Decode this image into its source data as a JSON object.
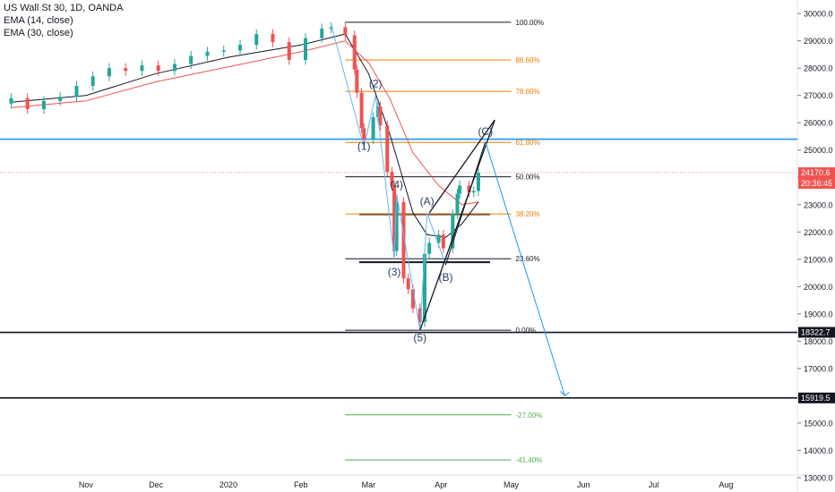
{
  "header": {
    "symbol_line": "US Wall St 30, 1D, OANDA",
    "ema1_label": "EMA (14, close)",
    "ema2_label": "EMA (30, close)"
  },
  "colors": {
    "bull": "#26a69a",
    "bear": "#ef5350",
    "ema14": "#131722",
    "ema30": "#ef5350",
    "fib_black": "#131722",
    "fib_orange": "#f57c00",
    "fib_green": "#4caf50",
    "hline_blue": "#2196f3",
    "arrow_blue": "#2196f3",
    "price_badge": "#ef5350"
  },
  "y_axis_ticks": [
    "30000.0",
    "29000.0",
    "28000.0",
    "27000.0",
    "26000.0",
    "25000.0",
    "24000.0",
    "23000.0",
    "22000.0",
    "21000.0",
    "20000.0",
    "19000.0",
    "18000.0",
    "17000.0",
    "16000.0",
    "15000.0",
    "14000.0",
    "13000.0"
  ],
  "x_axis_labels": [
    "Nov",
    "Dec",
    "2020",
    "Feb",
    "Mar",
    "Apr",
    "May",
    "Jun",
    "Jul",
    "Aug"
  ],
  "fib_levels": [
    {
      "label": "100.00%",
      "price": 29680,
      "color": "fib_black"
    },
    {
      "label": "88.60%",
      "price": 28300,
      "color": "fib_orange"
    },
    {
      "label": "78.60%",
      "price": 27150,
      "color": "fib_orange"
    },
    {
      "label": "61.80%",
      "price": 25280,
      "color": "fib_orange"
    },
    {
      "label": "50.00%",
      "price": 24020,
      "color": "fib_black"
    },
    {
      "label": "38.20%",
      "price": 22660,
      "color": "fib_orange"
    },
    {
      "label": "23.60%",
      "price": 21020,
      "color": "fib_black"
    },
    {
      "label": "0.00%",
      "price": 18400,
      "color": "fib_black"
    },
    {
      "label": "-27.00%",
      "price": 15300,
      "color": "fib_green"
    },
    {
      "label": "-41.40%",
      "price": 13650,
      "color": "fib_green"
    }
  ],
  "wave_labels": [
    {
      "label": "(1)",
      "x_date": "2020-02-28",
      "price": 25000
    },
    {
      "label": "(2)",
      "x_date": "2020-03-04",
      "price": 27300
    },
    {
      "label": "(3)",
      "x_date": "2020-03-12",
      "price": 20400
    },
    {
      "label": "(4)",
      "x_date": "2020-03-13",
      "price": 23600
    },
    {
      "label": "(5)",
      "x_date": "2020-03-23",
      "price": 18000
    },
    {
      "label": "(A)",
      "x_date": "2020-03-26",
      "price": 23000
    },
    {
      "label": "(B)",
      "x_date": "2020-04-03",
      "price": 20200
    },
    {
      "label": "(C)",
      "x_date": "2020-04-20",
      "price": 25550
    }
  ],
  "horizontal_lines": [
    {
      "name": "resistance-blue",
      "price": 25400,
      "color": "hline_blue"
    },
    {
      "name": "support-18322",
      "price": 18322.7,
      "color": "fib_black"
    },
    {
      "name": "target-15919",
      "price": 15919.5,
      "color": "fib_black"
    },
    {
      "name": "range-high",
      "price": 22650,
      "color": "fib_black"
    },
    {
      "name": "range-low",
      "price": 20890,
      "color": "fib_black"
    }
  ],
  "price_badges": [
    {
      "name": "last-price-badge",
      "text": "24170.6",
      "bg": "#ef5350",
      "fg": "#ffffff"
    },
    {
      "name": "countdown-badge",
      "text": "20:36:45",
      "bg": "#ef5350",
      "fg": "#ffffff"
    },
    {
      "name": "level-18322-badge",
      "text": "18322.7",
      "bg": "#131722",
      "fg": "#ffffff"
    },
    {
      "name": "level-15919-badge",
      "text": "15919.5",
      "bg": "#131722",
      "fg": "#ffffff"
    }
  ],
  "last_price": 24170.6,
  "chart_data": {
    "type": "candlestick",
    "y_range": [
      12900,
      30300
    ],
    "x_range": [
      "2019-09-26",
      "2020-08-30"
    ],
    "candles": [
      {
        "date": "2019-09-30",
        "close": 26900
      },
      {
        "date": "2019-10-07",
        "close": 26500
      },
      {
        "date": "2019-10-14",
        "close": 26800
      },
      {
        "date": "2019-10-21",
        "close": 26950
      },
      {
        "date": "2019-10-28",
        "close": 27350
      },
      {
        "date": "2019-11-04",
        "close": 27700
      },
      {
        "date": "2019-11-11",
        "close": 28000
      },
      {
        "date": "2019-11-18",
        "close": 27900
      },
      {
        "date": "2019-11-25",
        "close": 28100
      },
      {
        "date": "2019-12-02",
        "close": 27900
      },
      {
        "date": "2019-12-09",
        "close": 28150
      },
      {
        "date": "2019-12-16",
        "close": 28450
      },
      {
        "date": "2019-12-23",
        "close": 28600
      },
      {
        "date": "2019-12-30",
        "close": 28650
      },
      {
        "date": "2020-01-06",
        "close": 28850
      },
      {
        "date": "2020-01-13",
        "close": 29250
      },
      {
        "date": "2020-01-20",
        "close": 28950
      },
      {
        "date": "2020-01-27",
        "close": 28300
      },
      {
        "date": "2020-02-03",
        "close": 29100
      },
      {
        "date": "2020-02-10",
        "close": 29450
      },
      {
        "date": "2020-02-14",
        "close": 29500
      },
      {
        "date": "2020-02-20",
        "close": 29200
      },
      {
        "date": "2020-02-24",
        "close": 27950
      },
      {
        "date": "2020-02-25",
        "close": 27100
      },
      {
        "date": "2020-02-27",
        "close": 25800
      },
      {
        "date": "2020-02-28",
        "close": 25400
      },
      {
        "date": "2020-03-03",
        "close": 26200
      },
      {
        "date": "2020-03-05",
        "close": 26600
      },
      {
        "date": "2020-03-06",
        "close": 25900
      },
      {
        "date": "2020-03-09",
        "close": 24200
      },
      {
        "date": "2020-03-11",
        "close": 23700
      },
      {
        "date": "2020-03-12",
        "close": 21300
      },
      {
        "date": "2020-03-13",
        "close": 23100
      },
      {
        "date": "2020-03-16",
        "close": 20300
      },
      {
        "date": "2020-03-18",
        "close": 19900
      },
      {
        "date": "2020-03-20",
        "close": 19200
      },
      {
        "date": "2020-03-23",
        "close": 18700
      },
      {
        "date": "2020-03-25",
        "close": 21200
      },
      {
        "date": "2020-03-27",
        "close": 21600
      },
      {
        "date": "2020-03-31",
        "close": 21900
      },
      {
        "date": "2020-04-02",
        "close": 21400
      },
      {
        "date": "2020-04-06",
        "close": 22650
      },
      {
        "date": "2020-04-08",
        "close": 23400
      },
      {
        "date": "2020-04-09",
        "close": 23700
      },
      {
        "date": "2020-04-13",
        "close": 23450
      },
      {
        "date": "2020-04-15",
        "close": 23500
      },
      {
        "date": "2020-04-17",
        "close": 24170.6
      }
    ],
    "ema14_points": [
      {
        "date": "2019-09-30",
        "value": 26750
      },
      {
        "date": "2019-11-01",
        "value": 27000
      },
      {
        "date": "2019-12-01",
        "value": 27800
      },
      {
        "date": "2020-01-01",
        "value": 28400
      },
      {
        "date": "2020-02-01",
        "value": 28850
      },
      {
        "date": "2020-02-20",
        "value": 29250
      },
      {
        "date": "2020-03-01",
        "value": 27800
      },
      {
        "date": "2020-03-10",
        "value": 25600
      },
      {
        "date": "2020-03-20",
        "value": 22700
      },
      {
        "date": "2020-03-26",
        "value": 21900
      },
      {
        "date": "2020-04-03",
        "value": 21800
      },
      {
        "date": "2020-04-10",
        "value": 22300
      },
      {
        "date": "2020-04-17",
        "value": 23100
      }
    ],
    "ema30_points": [
      {
        "date": "2019-09-30",
        "value": 26550
      },
      {
        "date": "2019-11-01",
        "value": 26800
      },
      {
        "date": "2019-12-01",
        "value": 27500
      },
      {
        "date": "2020-01-01",
        "value": 28050
      },
      {
        "date": "2020-02-01",
        "value": 28600
      },
      {
        "date": "2020-02-20",
        "value": 29000
      },
      {
        "date": "2020-03-01",
        "value": 28200
      },
      {
        "date": "2020-03-10",
        "value": 26900
      },
      {
        "date": "2020-03-20",
        "value": 24900
      },
      {
        "date": "2020-03-31",
        "value": 23700
      },
      {
        "date": "2020-04-10",
        "value": 23000
      },
      {
        "date": "2020-04-17",
        "value": 23100
      }
    ]
  }
}
